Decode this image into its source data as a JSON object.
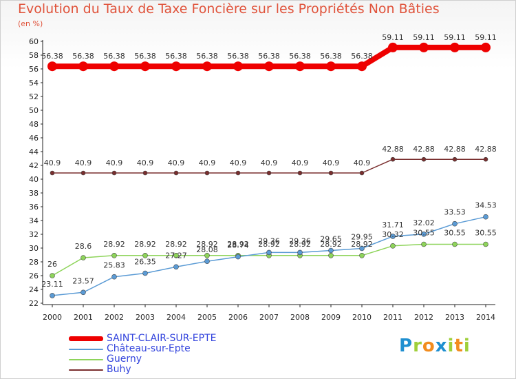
{
  "chart_data": {
    "type": "line",
    "title": "Evolution du Taux de Taxe Foncière sur les Propriétés Non Bâties",
    "unit_label": "(en %)",
    "xlabel": "",
    "ylabel": "(en %)",
    "x": [
      "2000",
      "2001",
      "2002",
      "2003",
      "2004",
      "2005",
      "2006",
      "2007",
      "2008",
      "2009",
      "2010",
      "2011",
      "2012",
      "2013",
      "2014"
    ],
    "ylim": [
      22,
      60
    ],
    "ytick_step": 2,
    "grid": false,
    "legend_position": "bottom-left",
    "series": [
      {
        "name": "SAINT-CLAIR-SUR-EPTE",
        "color": "#ee0000",
        "values": [
          56.38,
          56.38,
          56.38,
          56.38,
          56.38,
          56.38,
          56.38,
          56.38,
          56.38,
          56.38,
          56.38,
          59.11,
          59.11,
          59.11,
          59.11
        ],
        "labels": [
          "56.38",
          "56.38",
          "56.38",
          "56.38",
          "56.38",
          "56.38",
          "56.38",
          "56.38",
          "56.38",
          "56.38",
          "56.38",
          "59.11",
          "59.11",
          "59.11",
          "59.11"
        ]
      },
      {
        "name": "Château-sur-Epte",
        "color": "#5b9bd5",
        "values": [
          23.11,
          23.57,
          25.83,
          26.35,
          27.27,
          28.08,
          28.74,
          29.36,
          29.36,
          29.65,
          29.95,
          31.71,
          32.02,
          33.53,
          34.53
        ],
        "labels": [
          "23.11",
          "23.57",
          "25.83",
          "26.35",
          "27.27",
          "28.08",
          "28.74",
          "29.36",
          "29.36",
          "29.65",
          "29.95",
          "31.71",
          "32.02",
          "33.53",
          "34.53"
        ]
      },
      {
        "name": "Guerny",
        "color": "#8ed45a",
        "values": [
          26,
          28.6,
          28.92,
          28.92,
          28.92,
          28.92,
          28.92,
          28.92,
          28.92,
          28.92,
          28.92,
          30.32,
          30.55,
          30.55,
          30.55
        ],
        "labels": [
          "26",
          "28.6",
          "28.92",
          "28.92",
          "28.92",
          "28.92",
          "28.92",
          "28.92",
          "28.92",
          "28.92",
          "28.92",
          "30.32",
          "30.55",
          "30.55",
          "30.55"
        ]
      },
      {
        "name": "Buhy",
        "color": "#7a2e2e",
        "values": [
          40.9,
          40.9,
          40.9,
          40.9,
          40.9,
          40.9,
          40.9,
          40.9,
          40.9,
          40.9,
          40.9,
          42.88,
          42.88,
          42.88,
          42.88
        ],
        "labels": [
          "40.9",
          "40.9",
          "40.9",
          "40.9",
          "40.9",
          "40.9",
          "40.9",
          "40.9",
          "40.9",
          "40.9",
          "40.9",
          "42.88",
          "42.88",
          "42.88",
          "42.88"
        ]
      }
    ]
  },
  "logo": {
    "letters": [
      "P",
      "r",
      "o",
      "x",
      "i",
      "t",
      "i"
    ],
    "colors": [
      "#1f8fd0",
      "#9fcf3a",
      "#f28c1e",
      "#1f8fd0",
      "#9fcf3a",
      "#f28c1e",
      "#9fcf3a"
    ]
  }
}
